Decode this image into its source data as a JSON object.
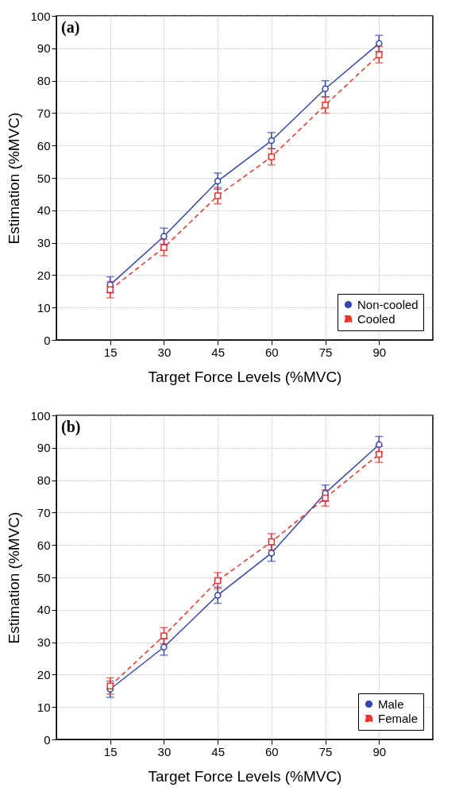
{
  "chart_data": [
    {
      "type": "line",
      "title": "(a)",
      "xlabel": "Target Force Levels (%MVC)",
      "ylabel": "Estimation (%MVC)",
      "x": [
        15,
        30,
        45,
        60,
        75,
        90
      ],
      "xlim": [
        0,
        105
      ],
      "xticks": [
        15,
        30,
        45,
        60,
        75,
        90
      ],
      "ylim": [
        0,
        100
      ],
      "yticks": [
        0,
        10,
        20,
        30,
        40,
        50,
        60,
        70,
        80,
        90,
        100
      ],
      "grid": true,
      "legend": "bottom right",
      "series": [
        {
          "name": "Non-cooled",
          "color": "#3446a8",
          "marker": "circle",
          "line_style": "solid",
          "values": [
            17,
            32,
            49,
            61.5,
            77.5,
            91.5
          ],
          "errors": [
            2.5,
            2.5,
            2.5,
            2.5,
            2.5,
            2.5
          ]
        },
        {
          "name": "Cooled",
          "color": "#e8332c",
          "marker": "square",
          "line_style": "dashed",
          "values": [
            15.5,
            28.5,
            44.5,
            56.5,
            72.5,
            88
          ],
          "errors": [
            2.5,
            2.5,
            2.5,
            2.5,
            2.5,
            2.5
          ]
        }
      ]
    },
    {
      "type": "line",
      "title": "(b)",
      "xlabel": "Target Force Levels (%MVC)",
      "ylabel": "Estimation (%MVC)",
      "x": [
        15,
        30,
        45,
        60,
        75,
        90
      ],
      "xlim": [
        0,
        105
      ],
      "xticks": [
        15,
        30,
        45,
        60,
        75,
        90
      ],
      "ylim": [
        0,
        100
      ],
      "yticks": [
        0,
        10,
        20,
        30,
        40,
        50,
        60,
        70,
        80,
        90,
        100
      ],
      "grid": true,
      "legend": "bottom right",
      "series": [
        {
          "name": "Male",
          "color": "#3446a8",
          "marker": "circle",
          "line_style": "solid",
          "values": [
            15.5,
            28.5,
            44.5,
            57.5,
            76,
            91
          ],
          "errors": [
            2.5,
            2.5,
            2.5,
            2.5,
            2.5,
            2.5
          ]
        },
        {
          "name": "Female",
          "color": "#e8332c",
          "marker": "square",
          "line_style": "dashed",
          "values": [
            16.5,
            32,
            49,
            61,
            74.5,
            88
          ],
          "errors": [
            2.5,
            2.5,
            2.5,
            2.5,
            2.5,
            2.5
          ]
        }
      ]
    }
  ]
}
